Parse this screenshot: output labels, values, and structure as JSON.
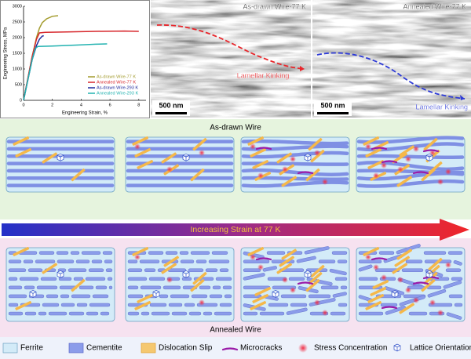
{
  "chart_data": {
    "type": "line",
    "xlabel": "Engineering Strain, %",
    "ylabel": "Engineering Stress, MPa",
    "xlim": [
      0,
      8.5
    ],
    "ylim": [
      0,
      3000
    ],
    "xticks": [
      0,
      2,
      4,
      6,
      8
    ],
    "yticks": [
      0,
      500,
      1000,
      1500,
      2000,
      2500,
      3000
    ],
    "legend": "lower right",
    "series": [
      {
        "name": "As-drawn Wire-77 K",
        "color": "#a39b2d",
        "x": [
          0,
          0.3,
          0.6,
          0.9,
          1.1,
          1.3,
          1.6,
          2.0,
          2.4
        ],
        "values": [
          0,
          700,
          1400,
          2000,
          2300,
          2480,
          2600,
          2680,
          2700
        ]
      },
      {
        "name": "Annealed Wire-77 K",
        "color": "#d7262b",
        "x": [
          0,
          0.3,
          0.6,
          0.9,
          1.1,
          1.5,
          3,
          5,
          7,
          8
        ],
        "values": [
          0,
          700,
          1400,
          1950,
          2150,
          2170,
          2180,
          2200,
          2210,
          2200
        ]
      },
      {
        "name": "As-drawn Wire-293 K",
        "color": "#1f2a9c",
        "x": [
          0,
          0.3,
          0.6,
          0.9,
          1.1,
          1.3,
          1.4
        ],
        "values": [
          0,
          650,
          1300,
          1750,
          1950,
          2050,
          2060
        ]
      },
      {
        "name": "Annealed Wire-293 K",
        "color": "#22b2b0",
        "x": [
          0,
          0.3,
          0.6,
          0.8,
          1,
          2,
          3,
          4,
          5,
          5.8
        ],
        "values": [
          0,
          650,
          1300,
          1650,
          1720,
          1730,
          1750,
          1770,
          1790,
          1800
        ]
      }
    ]
  },
  "micrographs": [
    {
      "label": "As-drawn Wire-77 K",
      "annotation": "Lamellar Kinking",
      "scale_bar": "500 nm"
    },
    {
      "label": "Annealed Wire-77 K",
      "annotation": "Lamellar Kinking",
      "scale_bar": "500 nm"
    }
  ],
  "diagram": {
    "top_label": "As-drawn Wire",
    "arrow_label": "Increasing Strain at 77 K",
    "bottom_label": "Annealed Wire"
  },
  "legend": [
    "Ferrite",
    "Cementite",
    "Dislocation Slip",
    "Microcracks",
    "Stress Concentration",
    "Lattice Orientation"
  ]
}
